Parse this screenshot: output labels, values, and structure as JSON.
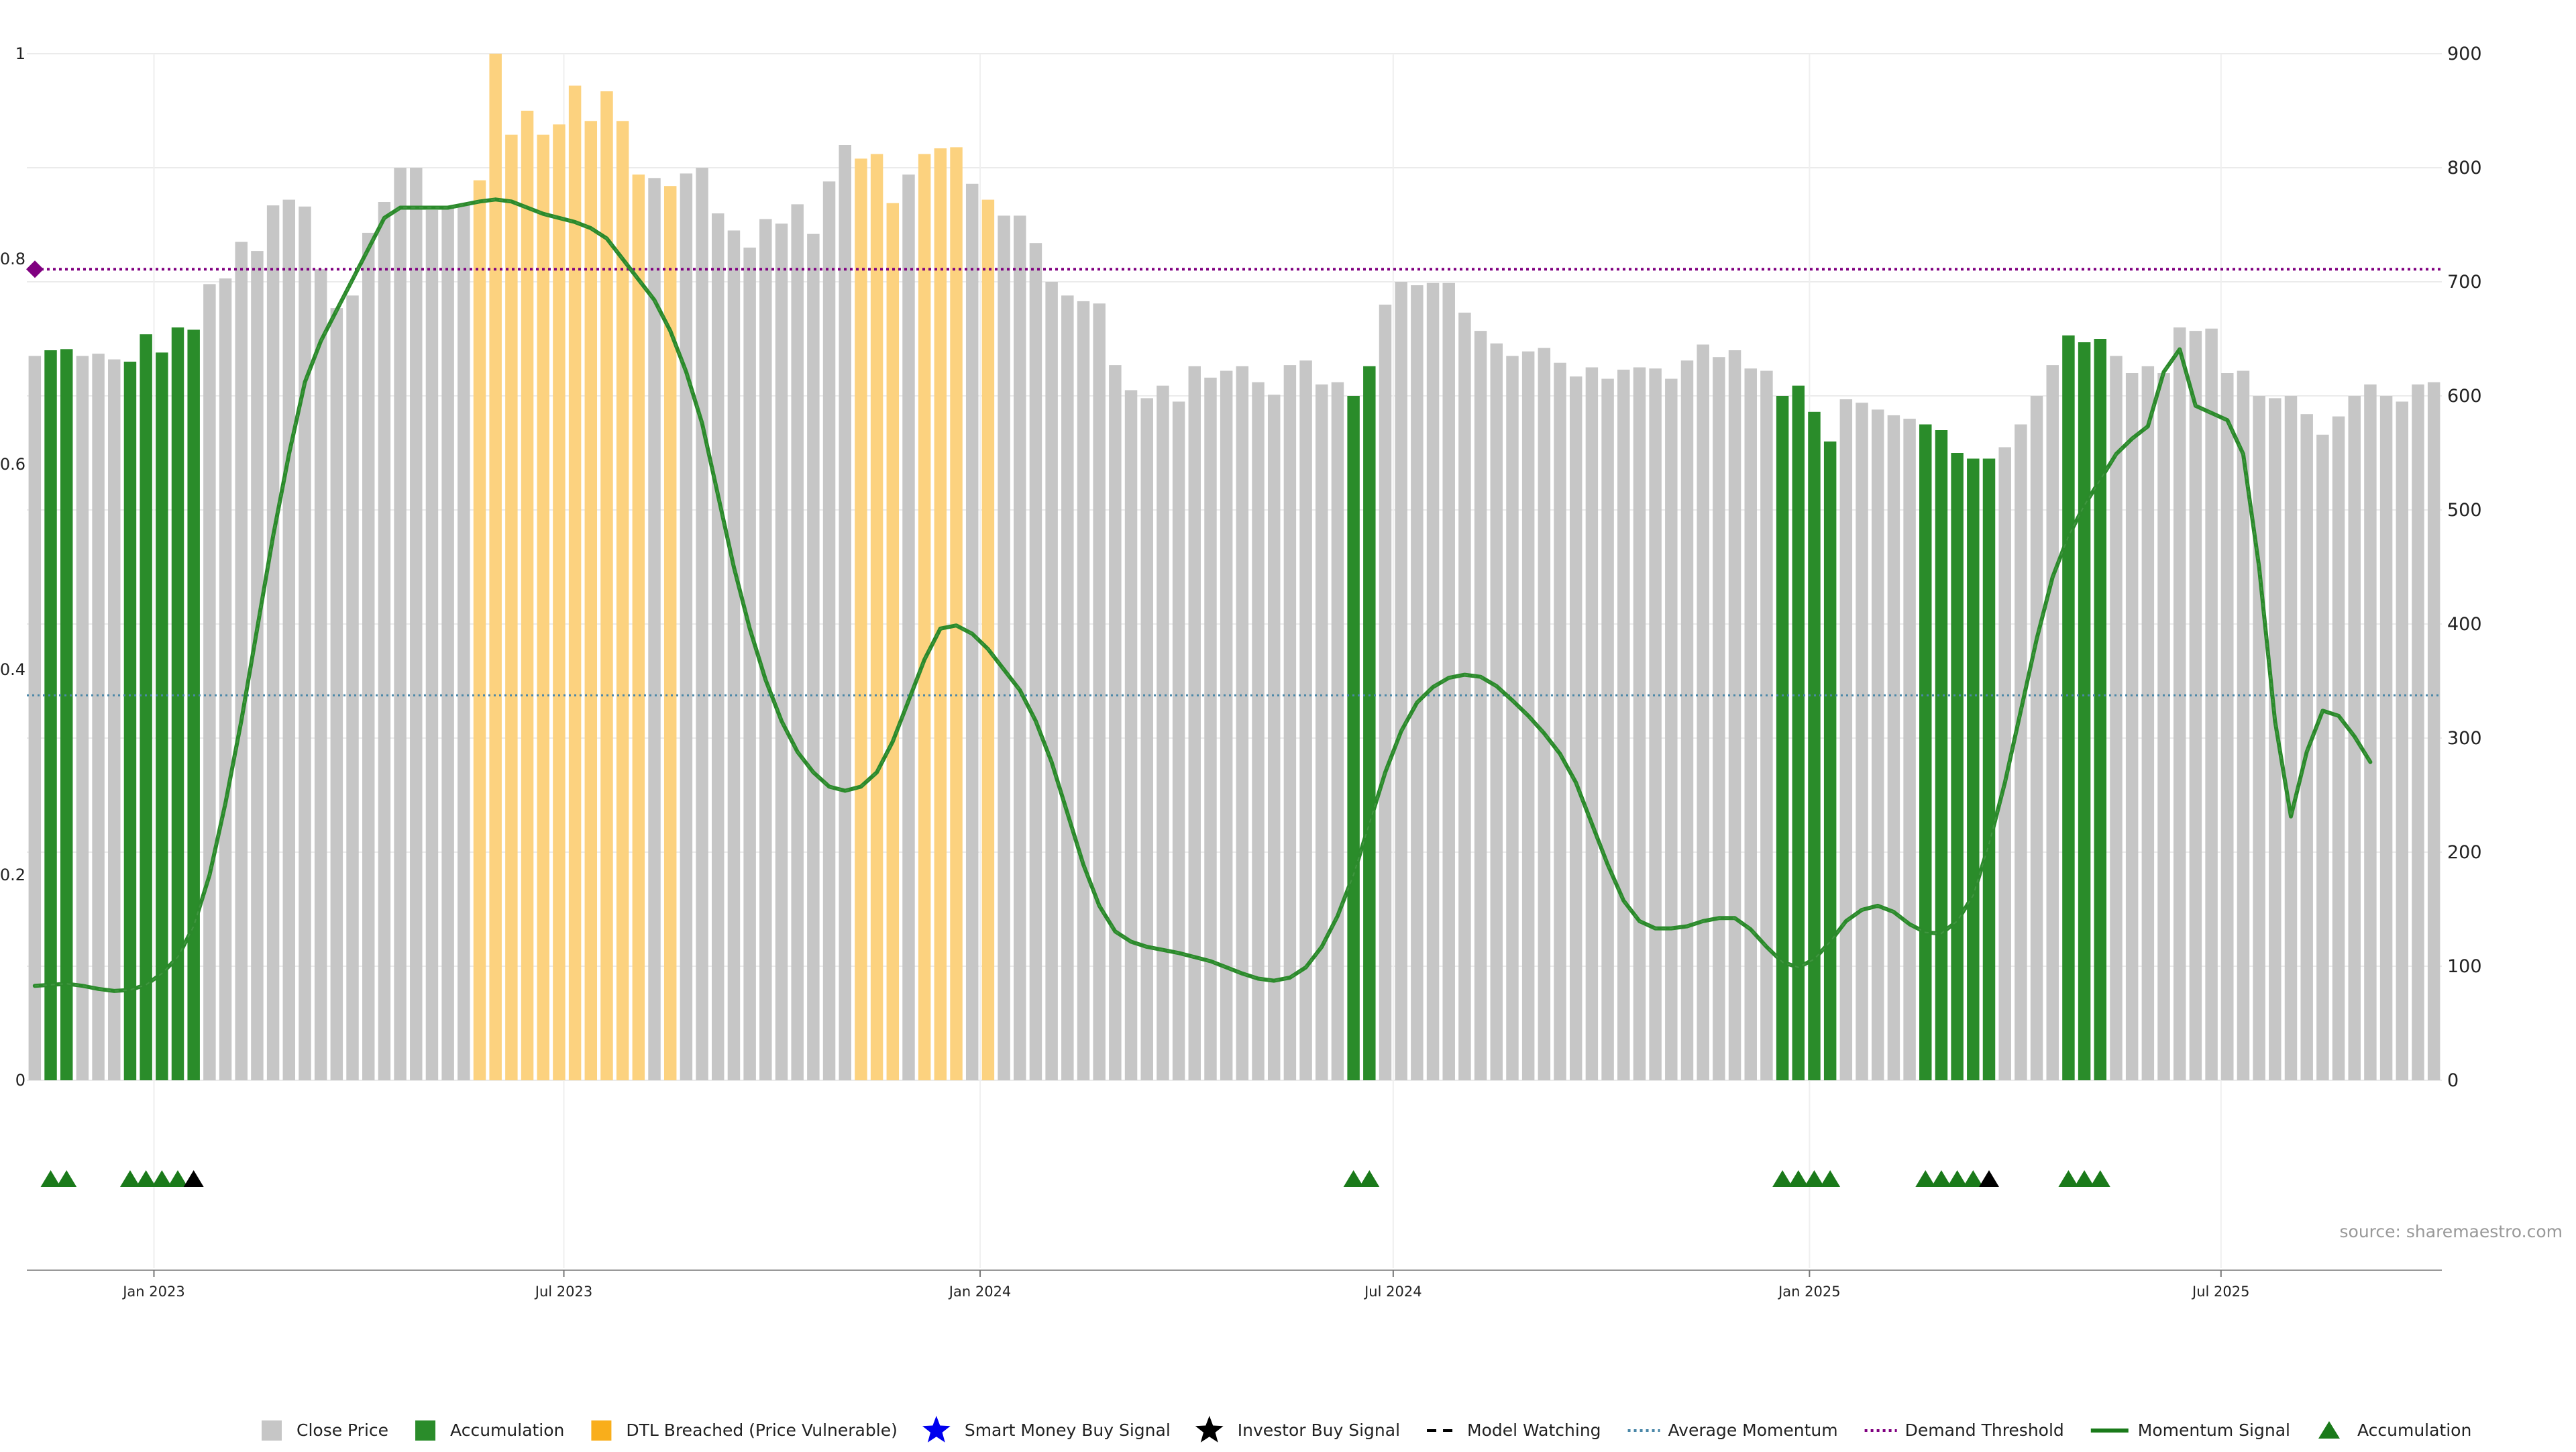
{
  "source_note": "source: sharemaestro.com",
  "chart_data": {
    "type": "bar",
    "title": "",
    "xlabel": "",
    "ylabel": "",
    "left_axis": {
      "ticks": [
        "0",
        "0.2",
        "0.4",
        "0.6",
        "0.8",
        "1"
      ],
      "range": [
        0,
        1
      ]
    },
    "right_axis": {
      "ticks": [
        "0",
        "100",
        "200",
        "300",
        "400",
        "500",
        "600",
        "700",
        "800",
        "900"
      ],
      "range": [
        0,
        900
      ]
    },
    "x_ticks": [
      {
        "label": "Jan 2023",
        "at_bar": 7.5
      },
      {
        "label": "Jul 2023",
        "at_bar": 33.3
      },
      {
        "label": "Jan 2024",
        "at_bar": 59.5
      },
      {
        "label": "Jul 2024",
        "at_bar": 85.5
      },
      {
        "label": "Jan 2025",
        "at_bar": 111.7
      },
      {
        "label": "Jul 2025",
        "at_bar": 137.6
      }
    ],
    "grid": true,
    "legend_position": "bottom",
    "colors": {
      "close": "#c6c6c6",
      "accumulation": "#2a8c2a",
      "dtl": "#fcd27f",
      "momentum": "#2b8a2b",
      "average": "#4a87a8",
      "demand": "#800080",
      "investor": "#000000",
      "smart_money": "#0000ee"
    },
    "demand_threshold": 0.79,
    "average_momentum": 0.375,
    "close_prices": [
      635,
      640,
      641,
      635,
      637,
      632,
      630,
      654,
      638,
      660,
      658,
      698,
      703,
      735,
      727,
      767,
      772,
      766,
      711,
      677,
      688,
      743,
      770,
      800,
      800,
      763,
      765,
      768,
      789,
      900,
      829,
      850,
      829,
      838,
      872,
      841,
      867,
      841,
      794,
      791,
      784,
      795,
      800,
      760,
      745,
      730,
      755,
      751,
      768,
      742,
      788,
      820,
      808,
      812,
      769,
      794,
      812,
      817,
      818,
      786,
      772,
      758,
      758,
      734,
      700,
      688,
      683,
      681,
      627,
      605,
      598,
      609,
      595,
      626,
      616,
      622,
      626,
      612,
      601,
      627,
      631,
      610,
      612,
      600,
      626,
      680,
      700,
      697,
      699,
      699,
      673,
      657,
      646,
      635,
      639,
      642,
      629,
      617,
      625,
      615,
      623,
      625,
      624,
      615,
      631,
      645,
      634,
      640,
      624,
      622,
      600,
      609,
      586,
      560,
      597,
      594,
      588,
      583,
      580,
      575,
      570,
      550,
      545,
      545,
      555,
      575,
      600,
      627,
      653,
      647,
      650,
      635,
      620,
      626,
      620,
      660,
      657,
      659,
      620,
      622,
      600,
      598,
      600,
      584,
      566,
      582,
      600,
      610,
      600,
      595,
      610,
      612
    ],
    "accumulation_bars": [
      1,
      2,
      6,
      7,
      8,
      9,
      10,
      83,
      84,
      110,
      111,
      112,
      113,
      119,
      120,
      121,
      122,
      123,
      128,
      129,
      130
    ],
    "dtl_bars": [
      28,
      29,
      30,
      31,
      32,
      33,
      34,
      35,
      36,
      37,
      38,
      40,
      52,
      53,
      54,
      56,
      57,
      58,
      60
    ],
    "momentum_signal": [
      [
        0,
        0.092
      ],
      [
        1,
        0.093
      ],
      [
        2,
        0.094
      ],
      [
        3,
        0.092
      ],
      [
        4,
        0.089
      ],
      [
        5,
        0.087
      ],
      [
        6,
        0.088
      ],
      [
        7,
        0.093
      ],
      [
        8,
        0.104
      ],
      [
        9,
        0.12
      ],
      [
        10,
        0.15
      ],
      [
        11,
        0.2
      ],
      [
        12,
        0.27
      ],
      [
        13,
        0.35
      ],
      [
        14,
        0.44
      ],
      [
        15,
        0.53
      ],
      [
        16,
        0.61
      ],
      [
        17,
        0.68
      ],
      [
        18,
        0.72
      ],
      [
        19,
        0.75
      ],
      [
        20,
        0.78
      ],
      [
        21,
        0.81
      ],
      [
        22,
        0.84
      ],
      [
        23,
        0.85
      ],
      [
        24,
        0.85
      ],
      [
        25,
        0.85
      ],
      [
        26,
        0.85
      ],
      [
        27,
        0.853
      ],
      [
        28,
        0.856
      ],
      [
        29,
        0.858
      ],
      [
        30,
        0.856
      ],
      [
        31,
        0.85
      ],
      [
        32,
        0.844
      ],
      [
        33,
        0.84
      ],
      [
        34,
        0.836
      ],
      [
        35,
        0.83
      ],
      [
        36,
        0.82
      ],
      [
        37,
        0.8
      ],
      [
        38,
        0.78
      ],
      [
        39,
        0.76
      ],
      [
        40,
        0.73
      ],
      [
        41,
        0.69
      ],
      [
        42,
        0.64
      ],
      [
        43,
        0.57
      ],
      [
        44,
        0.5
      ],
      [
        45,
        0.44
      ],
      [
        46,
        0.39
      ],
      [
        47,
        0.35
      ],
      [
        48,
        0.32
      ],
      [
        49,
        0.3
      ],
      [
        50,
        0.286
      ],
      [
        51,
        0.282
      ],
      [
        52,
        0.286
      ],
      [
        53,
        0.3
      ],
      [
        54,
        0.33
      ],
      [
        55,
        0.37
      ],
      [
        56,
        0.41
      ],
      [
        57,
        0.44
      ],
      [
        58,
        0.443
      ],
      [
        59,
        0.435
      ],
      [
        60,
        0.42
      ],
      [
        61,
        0.4
      ],
      [
        62,
        0.38
      ],
      [
        63,
        0.35
      ],
      [
        64,
        0.31
      ],
      [
        65,
        0.26
      ],
      [
        66,
        0.21
      ],
      [
        67,
        0.17
      ],
      [
        68,
        0.145
      ],
      [
        69,
        0.135
      ],
      [
        70,
        0.13
      ],
      [
        71,
        0.127
      ],
      [
        72,
        0.124
      ],
      [
        73,
        0.12
      ],
      [
        74,
        0.116
      ],
      [
        75,
        0.11
      ],
      [
        76,
        0.104
      ],
      [
        77,
        0.099
      ],
      [
        78,
        0.097
      ],
      [
        79,
        0.1
      ],
      [
        80,
        0.11
      ],
      [
        81,
        0.13
      ],
      [
        82,
        0.16
      ],
      [
        83,
        0.2
      ],
      [
        84,
        0.25
      ],
      [
        85,
        0.3
      ],
      [
        86,
        0.34
      ],
      [
        87,
        0.368
      ],
      [
        88,
        0.383
      ],
      [
        89,
        0.392
      ],
      [
        90,
        0.395
      ],
      [
        91,
        0.393
      ],
      [
        92,
        0.384
      ],
      [
        93,
        0.37
      ],
      [
        94,
        0.355
      ],
      [
        95,
        0.338
      ],
      [
        96,
        0.318
      ],
      [
        97,
        0.29
      ],
      [
        98,
        0.25
      ],
      [
        99,
        0.21
      ],
      [
        100,
        0.175
      ],
      [
        101,
        0.155
      ],
      [
        102,
        0.148
      ],
      [
        103,
        0.148
      ],
      [
        104,
        0.15
      ],
      [
        105,
        0.155
      ],
      [
        106,
        0.158
      ],
      [
        107,
        0.158
      ],
      [
        108,
        0.147
      ],
      [
        109,
        0.13
      ],
      [
        110,
        0.115
      ],
      [
        111,
        0.11
      ],
      [
        112,
        0.118
      ],
      [
        113,
        0.135
      ],
      [
        114,
        0.155
      ],
      [
        115,
        0.166
      ],
      [
        116,
        0.17
      ],
      [
        117,
        0.164
      ],
      [
        118,
        0.152
      ],
      [
        119,
        0.144
      ],
      [
        120,
        0.143
      ],
      [
        121,
        0.155
      ],
      [
        122,
        0.18
      ],
      [
        123,
        0.23
      ],
      [
        124,
        0.29
      ],
      [
        125,
        0.36
      ],
      [
        126,
        0.43
      ],
      [
        127,
        0.49
      ],
      [
        128,
        0.53
      ],
      [
        129,
        0.56
      ],
      [
        130,
        0.585
      ],
      [
        131,
        0.61
      ],
      [
        132,
        0.625
      ],
      [
        133,
        0.637
      ],
      [
        134,
        0.69
      ],
      [
        135,
        0.712
      ],
      [
        136,
        0.657
      ],
      [
        137,
        0.65
      ],
      [
        138,
        0.643
      ],
      [
        139,
        0.61
      ],
      [
        140,
        0.5
      ],
      [
        141,
        0.35
      ],
      [
        142,
        0.257
      ],
      [
        143,
        0.32
      ],
      [
        144,
        0.36
      ],
      [
        145,
        0.355
      ],
      [
        146,
        0.335
      ],
      [
        147,
        0.31
      ]
    ],
    "accumulation_markers": [
      1,
      2,
      6,
      7,
      8,
      9,
      83,
      84,
      110,
      111,
      112,
      113,
      119,
      120,
      121,
      122,
      128,
      129,
      130
    ],
    "investor_markers": [
      10,
      123
    ],
    "legend": [
      {
        "label": "Close Price",
        "kind": "square",
        "color": "#c6c6c6"
      },
      {
        "label": "Accumulation",
        "kind": "square",
        "color": "#2a8c2a"
      },
      {
        "label": "DTL Breached (Price Vulnerable)",
        "kind": "square",
        "color": "#f9ae1b"
      },
      {
        "label": "Smart Money Buy Signal",
        "kind": "star",
        "color": "#0000ee"
      },
      {
        "label": "Investor Buy Signal",
        "kind": "star",
        "color": "#000000"
      },
      {
        "label": "Model Watching",
        "kind": "dashed",
        "color": "#000000"
      },
      {
        "label": "Average Momentum",
        "kind": "dotted",
        "color": "#4a87a8"
      },
      {
        "label": "Demand Threshold",
        "kind": "dotted",
        "color": "#800080"
      },
      {
        "label": "Momentum Signal",
        "kind": "solid",
        "color": "#1a7a1a"
      },
      {
        "label": "Accumulation",
        "kind": "triangle",
        "color": "#1a7a1a"
      }
    ]
  }
}
